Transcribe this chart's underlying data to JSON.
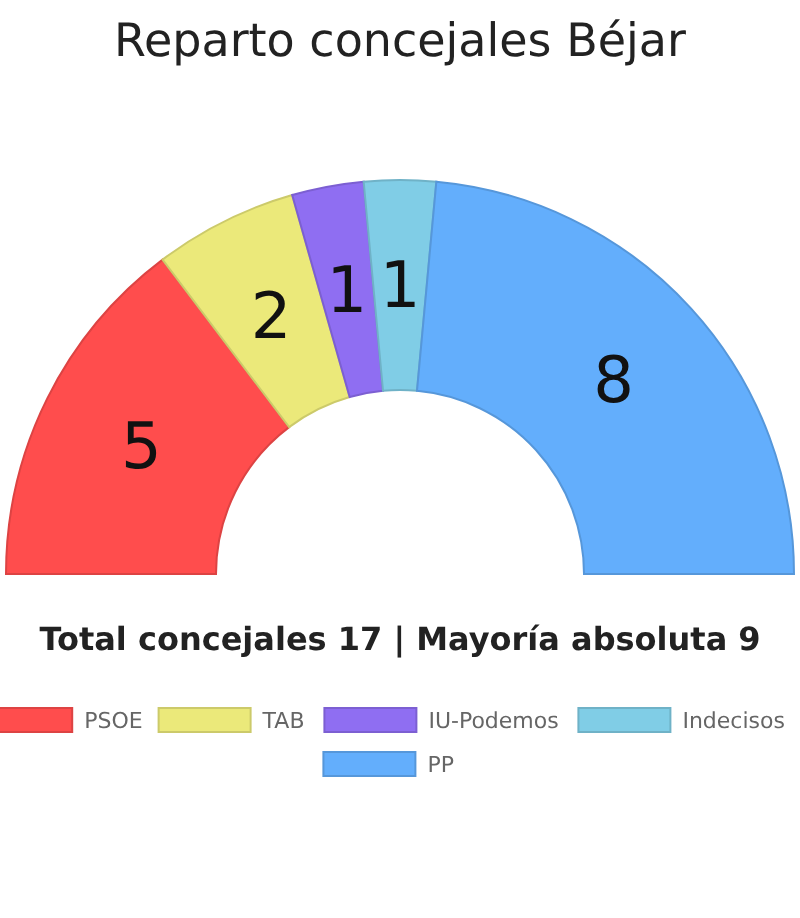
{
  "chart_data": {
    "type": "donut",
    "title": "Reparto concejales Béjar",
    "categories": [
      "PSOE",
      "TAB",
      "IU-Podemos",
      "Indecisos",
      "PP"
    ],
    "values": [
      5,
      2,
      1,
      1,
      8
    ],
    "colors": [
      "#ff4d4d",
      "#ebe97a",
      "#8f6ef2",
      "#80cde6",
      "#63aefc"
    ],
    "data_labels": true,
    "legend": "bottom",
    "annotations": [
      "Total concejales 17 | Mayoría absoluta 9"
    ]
  }
}
